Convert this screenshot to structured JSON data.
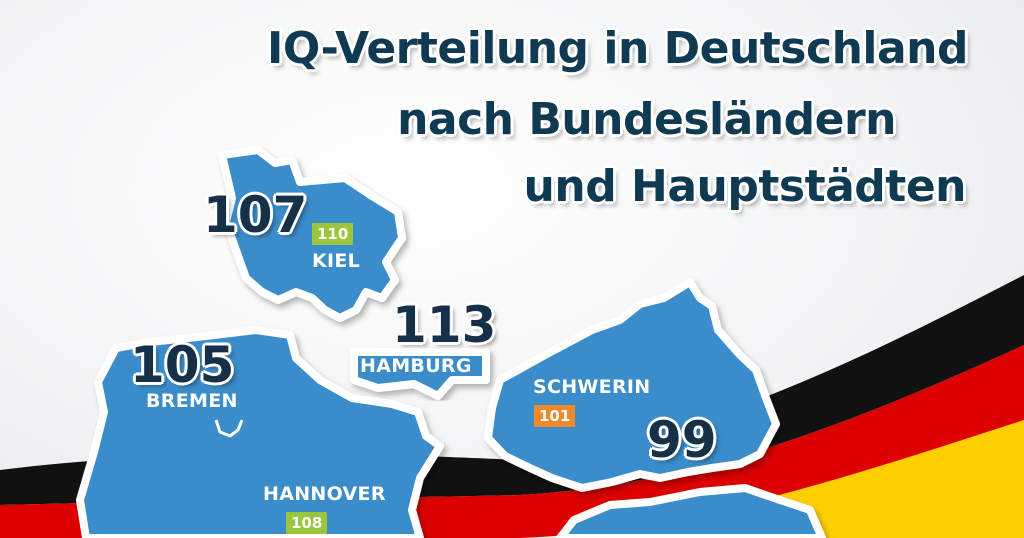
{
  "title": {
    "line1": "IQ-Verteilung in Deutschland",
    "line2": "nach Bundesländern",
    "line3": "und Hauptstädten"
  },
  "regions": {
    "schleswig_holstein": {
      "state_iq": "107",
      "capital": "KIEL",
      "capital_iq": "110",
      "badge_color": "#9bc53d"
    },
    "hamburg": {
      "state_iq": "113",
      "capital": "HAMBURG"
    },
    "bremen": {
      "state_iq": "105",
      "capital": "BREMEN"
    },
    "niedersachsen": {
      "capital": "HANNOVER",
      "capital_iq": "108",
      "badge_color": "#9bc53d"
    },
    "mecklenburg_vorpommern": {
      "state_iq": "99",
      "capital": "SCHWERIN",
      "capital_iq": "101",
      "badge_color": "#ef8a2c"
    }
  },
  "colors": {
    "state_fill": "#3a8ccb",
    "outline": "#ffffff",
    "flag_black": "#111111",
    "flag_red": "#dd0000",
    "flag_gold": "#ffce00",
    "title_text": "#0f3a52"
  }
}
